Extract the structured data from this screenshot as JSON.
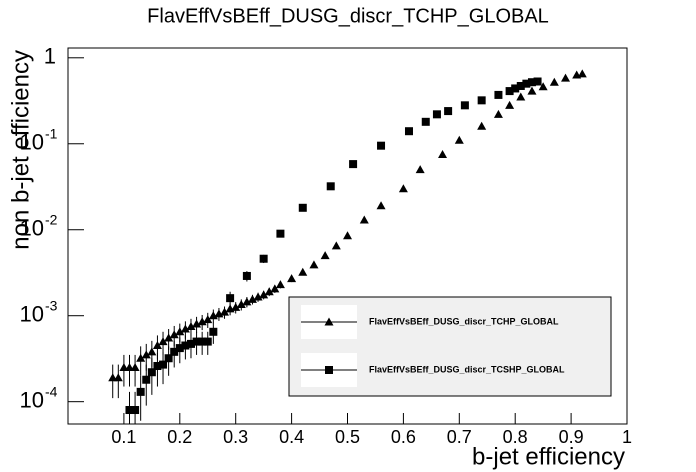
{
  "chart_data": {
    "type": "scatter",
    "title": "FlavEffVsBEff_DUSG_discr_TCHP_GLOBAL",
    "xlabel": "b-jet efficiency",
    "ylabel": "non b-jet efficiency",
    "xlim": [
      0,
      1
    ],
    "ylim": [
      5.5e-05,
      1.3
    ],
    "log_y": true,
    "grid": false,
    "legend_position": "lower right",
    "xticks": [
      0.1,
      0.2,
      0.3,
      0.4,
      0.5,
      0.6,
      0.7,
      0.8,
      0.9,
      1
    ],
    "yticks": [
      {
        "value": 0.0001,
        "label": "10",
        "exponent": "-4"
      },
      {
        "value": 0.001,
        "label": "10",
        "exponent": "-3"
      },
      {
        "value": 0.01,
        "label": "10",
        "exponent": "-2"
      },
      {
        "value": 0.1,
        "label": "10",
        "exponent": "-1"
      },
      1
    ],
    "series": [
      {
        "name": "FlavEffVsBEff_DUSG_discr_TCHP_GLOBAL",
        "color": "#000000",
        "marker": "triangle",
        "x": [
          0.08,
          0.09,
          0.1,
          0.11,
          0.12,
          0.13,
          0.14,
          0.15,
          0.16,
          0.17,
          0.18,
          0.19,
          0.2,
          0.21,
          0.22,
          0.23,
          0.24,
          0.25,
          0.26,
          0.27,
          0.28,
          0.29,
          0.3,
          0.31,
          0.32,
          0.33,
          0.34,
          0.35,
          0.36,
          0.37,
          0.38,
          0.4,
          0.42,
          0.44,
          0.46,
          0.48,
          0.5,
          0.53,
          0.56,
          0.6,
          0.63,
          0.67,
          0.7,
          0.74,
          0.77,
          0.79,
          0.81,
          0.83,
          0.85,
          0.87,
          0.89,
          0.91,
          0.92
        ],
        "values": [
          0.00019,
          0.00019,
          0.00025,
          0.00025,
          0.00025,
          0.00032,
          0.00035,
          0.00038,
          0.00045,
          0.0005,
          0.00055,
          0.0006,
          0.00065,
          0.0007,
          0.00075,
          0.0008,
          0.00085,
          0.0009,
          0.001,
          0.00105,
          0.0011,
          0.0012,
          0.00125,
          0.00135,
          0.00145,
          0.00155,
          0.00165,
          0.00175,
          0.0019,
          0.00205,
          0.0023,
          0.0027,
          0.0032,
          0.0039,
          0.005,
          0.0065,
          0.0085,
          0.013,
          0.019,
          0.03,
          0.05,
          0.075,
          0.11,
          0.16,
          0.22,
          0.28,
          0.35,
          0.41,
          0.46,
          0.52,
          0.58,
          0.63,
          0.65
        ],
        "errors": [
          8e-05,
          8e-05,
          0.0001,
          0.0001,
          0.0001,
          0.00012,
          0.00012,
          0.00013,
          0.00014,
          0.00015,
          0.00015,
          0.00016,
          0.00016,
          0.00016,
          0.00017,
          0.00017,
          0.00017,
          0.00018,
          0.00018,
          0.00018,
          0.00018,
          0.00019,
          0.00019,
          0.0002,
          0.0002,
          0.0002,
          0.0002,
          0.0002,
          0.00021,
          0.00021,
          0.00022,
          0.00024,
          0.00026,
          0.0003,
          0.0003,
          0.0004,
          0.0005,
          0.0006,
          0.0008,
          0.001,
          0.0015,
          0.002,
          0.003,
          0.004,
          0.005,
          0.006,
          0.007,
          0.008,
          0.008,
          0.009,
          0.009,
          0.01,
          0.01
        ]
      },
      {
        "name": "FlavEffVsBEff_DUSG_discr_TCSHP_GLOBAL",
        "color": "#000000",
        "marker": "square",
        "x": [
          0.11,
          0.12,
          0.13,
          0.14,
          0.15,
          0.16,
          0.17,
          0.18,
          0.19,
          0.2,
          0.21,
          0.22,
          0.23,
          0.24,
          0.25,
          0.26,
          0.29,
          0.32,
          0.35,
          0.38,
          0.42,
          0.47,
          0.51,
          0.56,
          0.61,
          0.64,
          0.66,
          0.68,
          0.71,
          0.74,
          0.77,
          0.79,
          0.8,
          0.81,
          0.82,
          0.83,
          0.84
        ],
        "values": [
          8e-05,
          8e-05,
          0.00013,
          0.00018,
          0.00022,
          0.00026,
          0.00027,
          0.00032,
          0.00038,
          0.00042,
          0.00045,
          0.00047,
          0.0005,
          0.0005,
          0.0005,
          0.00065,
          0.0016,
          0.0029,
          0.0046,
          0.009,
          0.018,
          0.032,
          0.058,
          0.095,
          0.14,
          0.18,
          0.22,
          0.24,
          0.28,
          0.32,
          0.37,
          0.41,
          0.44,
          0.47,
          0.5,
          0.52,
          0.53
        ],
        "errors": [
          5e-05,
          5e-05,
          7e-05,
          9e-05,
          0.0001,
          0.00011,
          0.00011,
          0.00012,
          0.00013,
          0.00014,
          0.00014,
          0.00015,
          0.00015,
          0.00015,
          0.00015,
          0.00018,
          0.0003,
          0.0004,
          0.0005,
          0.0007,
          0.001,
          0.0015,
          0.002,
          0.003,
          0.004,
          0.005,
          0.005,
          0.006,
          0.006,
          0.007,
          0.007,
          0.008,
          0.008,
          0.008,
          0.009,
          0.009,
          0.009
        ]
      }
    ]
  }
}
